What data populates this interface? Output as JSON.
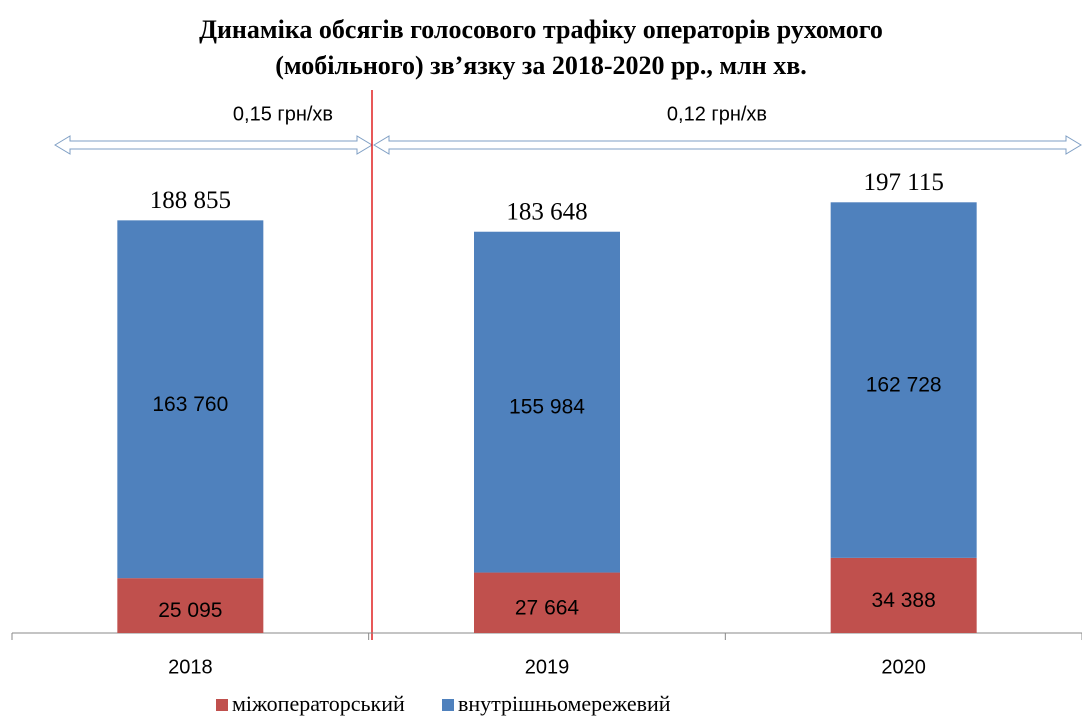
{
  "chart_data": {
    "type": "bar",
    "stacked": true,
    "title": [
      "Динаміка обсягів голосового трафіку операторів рухомого",
      "(мобільного) зв’язку за 2018-2020 рр., млн хв."
    ],
    "categories": [
      "2018",
      "2019",
      "2020"
    ],
    "series": [
      {
        "name": "міжоператорський",
        "color": "#c0504d",
        "values": [
          25095,
          27664,
          34388
        ],
        "value_labels": [
          "25 095",
          "27 664",
          "34 388"
        ]
      },
      {
        "name": "внутрішньомережевий",
        "color": "#4f81bd",
        "values": [
          163760,
          155984,
          162728
        ],
        "value_labels": [
          "163 760",
          "155 984",
          "162 728"
        ]
      }
    ],
    "totals": [
      188855,
      183648,
      197115
    ],
    "total_labels": [
      "188 855",
      "183 648",
      "197 115"
    ],
    "annotations": [
      "0,15 грн/хв",
      "0,12 грн/хв"
    ],
    "ylim": [
      0,
      200000
    ],
    "legend": "bottom"
  }
}
